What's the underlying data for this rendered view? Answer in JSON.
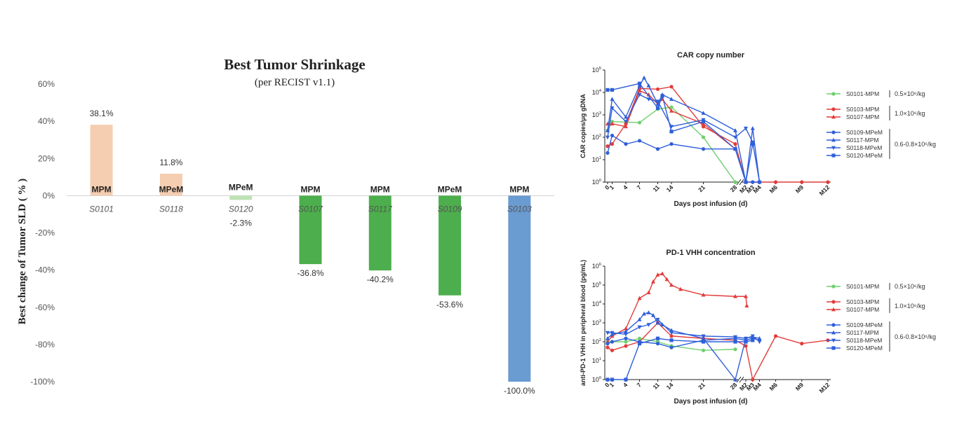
{
  "chart_data": [
    {
      "type": "bar",
      "title": "Best Tumor Shrinkage",
      "subtitle": "(per RECIST v1.1)",
      "ylabel": "Best change of Tumor SLD ( % )",
      "xlabel": "",
      "ylim": [
        -100,
        60
      ],
      "yticks": [
        "60%",
        "40%",
        "20%",
        "0%",
        "-20%",
        "-40%",
        "-60%",
        "-80%",
        "-100%"
      ],
      "yticks_values": [
        60,
        40,
        20,
        0,
        -20,
        -40,
        -60,
        -80,
        -100
      ],
      "categories": [
        "S0101",
        "S0118",
        "S0120",
        "S0107",
        "S0117",
        "S0109",
        "S0103"
      ],
      "histology": [
        "MPM",
        "MPeM",
        "MPeM",
        "MPM",
        "MPM",
        "MPeM",
        "MPM"
      ],
      "values": [
        38.1,
        11.8,
        -2.3,
        -36.8,
        -40.2,
        -53.6,
        -100.0
      ],
      "labels": [
        "38.1%",
        "11.8%",
        "-2.3%",
        "-36.8%",
        "-40.2%",
        "-53.6%",
        "-100.0%"
      ],
      "colors": [
        "#f5cdb0",
        "#f5cdb0",
        "#bfe3b4",
        "#4cae4c",
        "#4cae4c",
        "#4cae4c",
        "#6a9bd1"
      ]
    },
    {
      "type": "line",
      "title": "CAR copy number",
      "xlabel": "Days post infusion (d)",
      "ylabel": "CAR copies/μg gDNA",
      "yscale": "log",
      "yticks": [
        "10^0",
        "10^1",
        "10^2",
        "10^3",
        "10^4",
        "10^5"
      ],
      "xticks": [
        "0",
        "1",
        "4",
        "7",
        "11",
        "14",
        "21",
        "28",
        "M2",
        "M3",
        "M4",
        "M6",
        "M9",
        "M12"
      ],
      "series": [
        {
          "name": "S0101-MPM",
          "color": "#6fcf6f",
          "marker": "circle",
          "x": [
            "0",
            "1",
            "7",
            "11",
            "14",
            "21",
            "28"
          ],
          "y": [
            200,
            500,
            450,
            1800,
            2200,
            100,
            1
          ]
        },
        {
          "name": "S0103-MPM",
          "color": "#e23b3b",
          "marker": "circle",
          "x": [
            "0",
            "1",
            "4",
            "7",
            "11",
            "14",
            "21",
            "28",
            "M2",
            "M3",
            "M4",
            "M6",
            "M9",
            "M12"
          ],
          "y": [
            40,
            50,
            400,
            15000,
            14000,
            18000,
            300,
            50,
            1,
            1,
            1,
            1,
            1,
            1
          ]
        },
        {
          "name": "S0107-MPM",
          "color": "#e23b3b",
          "marker": "triangle",
          "x": [
            "0",
            "1",
            "4",
            "7",
            "9",
            "11",
            "12",
            "14",
            "21",
            "28"
          ],
          "y": [
            400,
            400,
            300,
            12000,
            8000,
            3000,
            5000,
            1500,
            400,
            30
          ]
        },
        {
          "name": "S0109-MPeM",
          "color": "#2f5fd9",
          "marker": "circle",
          "x": [
            "0",
            "1",
            "4",
            "7",
            "11",
            "14",
            "21",
            "28",
            "M2",
            "M3",
            "M4"
          ],
          "y": [
            20,
            120,
            50,
            70,
            30,
            50,
            30,
            30,
            1,
            1,
            1
          ]
        },
        {
          "name": "S0117-MPM",
          "color": "#2f5fd9",
          "marker": "triangle",
          "x": [
            "0",
            "1",
            "4",
            "7",
            "8",
            "9",
            "11",
            "12",
            "14",
            "21",
            "28",
            "M2",
            "M3",
            "M4"
          ],
          "y": [
            200,
            5000,
            800,
            20000,
            45000,
            20000,
            3000,
            8000,
            5000,
            1200,
            200,
            1,
            250,
            1
          ]
        },
        {
          "name": "S0118-MPeM",
          "color": "#2f5fd9",
          "marker": "triangle-down",
          "x": [
            "0",
            "1",
            "4",
            "7",
            "9",
            "11",
            "14",
            "21",
            "28",
            "M2",
            "M3",
            "M4"
          ],
          "y": [
            100,
            2000,
            500,
            8000,
            5000,
            4000,
            300,
            600,
            100,
            250,
            60,
            1
          ]
        },
        {
          "name": "S0120-MPeM",
          "color": "#2f5fd9",
          "marker": "square",
          "x": [
            "0",
            "1",
            "7",
            "11",
            "12",
            "14",
            "21",
            "28",
            "M2",
            "M3"
          ],
          "y": [
            13000,
            13000,
            25000,
            2000,
            7000,
            180,
            500,
            30,
            1,
            50
          ]
        }
      ],
      "legend_groups": [
        "0.5×10⁶/kg",
        "1.0×10⁶/kg",
        "0.6-0.8×10⁶/kg"
      ]
    },
    {
      "type": "line",
      "title": "PD-1 VHH concentration",
      "xlabel": "Days post infusion (d)",
      "ylabel": "anti-PD-1 VHH in peripheral blood (pg/mL)",
      "yscale": "log",
      "yticks": [
        "10^0",
        "10^1",
        "10^2",
        "10^3",
        "10^4",
        "10^5",
        "10^6"
      ],
      "xticks": [
        "0",
        "1",
        "4",
        "7",
        "11",
        "14",
        "21",
        "28",
        "M2",
        "M3",
        "M4",
        "M6",
        "M9",
        "M12"
      ],
      "series": [
        {
          "name": "S0101-MPM",
          "color": "#6fcf6f",
          "marker": "circle",
          "x": [
            "0",
            "1",
            "4",
            "7",
            "11",
            "14",
            "21",
            "28"
          ],
          "y": [
            100,
            100,
            100,
            150,
            100,
            60,
            35,
            40
          ]
        },
        {
          "name": "S0103-MPM",
          "color": "#e23b3b",
          "marker": "circle",
          "x": [
            "0",
            "1",
            "4",
            "7",
            "11",
            "14",
            "21",
            "28",
            "M2",
            "M3",
            "M6",
            "M9",
            "M12"
          ],
          "y": [
            50,
            35,
            60,
            100,
            1000,
            200,
            150,
            120,
            60,
            1,
            200,
            80,
            120
          ]
        },
        {
          "name": "S0107-MPM",
          "color": "#e23b3b",
          "marker": "triangle",
          "x": [
            "0",
            "1",
            "4",
            "7",
            "9",
            "10",
            "11",
            "12",
            "13",
            "14",
            "16",
            "21",
            "28",
            "M2",
            "M2.2"
          ],
          "y": [
            100,
            200,
            500,
            20000,
            40000,
            150000,
            350000,
            400000,
            200000,
            100000,
            60000,
            30000,
            25000,
            25000,
            8000
          ]
        },
        {
          "name": "S0109-MPeM",
          "color": "#2f5fd9",
          "marker": "circle",
          "x": [
            "0",
            "1",
            "4",
            "7",
            "11",
            "14",
            "21",
            "28",
            "M2",
            "M3",
            "M4"
          ],
          "y": [
            80,
            100,
            150,
            100,
            80,
            50,
            120,
            150,
            120,
            150,
            120
          ]
        },
        {
          "name": "S0117-MPM",
          "color": "#2f5fd9",
          "marker": "triangle",
          "x": [
            "0",
            "1",
            "4",
            "7",
            "8",
            "9",
            "10",
            "11",
            "12",
            "14",
            "21",
            "28",
            "M2",
            "M3",
            "M4"
          ],
          "y": [
            150,
            250,
            350,
            1500,
            3000,
            3500,
            2500,
            1000,
            800,
            400,
            150,
            1,
            150,
            180,
            150
          ]
        },
        {
          "name": "S0118-MPeM",
          "color": "#2f5fd9",
          "marker": "triangle-down",
          "x": [
            "0",
            "1",
            "4",
            "7",
            "9",
            "11",
            "14",
            "21",
            "28",
            "M2",
            "M3",
            "M4"
          ],
          "y": [
            300,
            300,
            250,
            600,
            800,
            1500,
            300,
            200,
            180,
            150,
            200,
            100
          ]
        },
        {
          "name": "S0120-MPeM",
          "color": "#2f5fd9",
          "marker": "square",
          "x": [
            "0",
            "1",
            "4",
            "7",
            "11",
            "14",
            "21",
            "28",
            "M2",
            "M3"
          ],
          "y": [
            1,
            1,
            1,
            80,
            150,
            120,
            100,
            100,
            100,
            120
          ]
        }
      ],
      "legend_groups": [
        "0.5×10⁶/kg",
        "1.0×10⁶/kg",
        "0.6-0.8×10⁶/kg"
      ]
    }
  ]
}
